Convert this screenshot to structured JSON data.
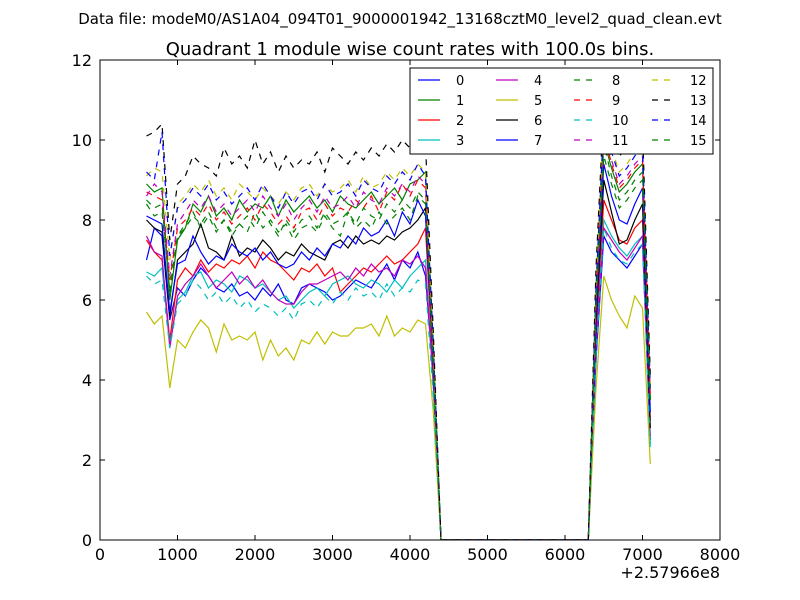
{
  "chart_data": {
    "type": "line",
    "suptitle": "Data file: modeM0/AS1A04_094T01_9000001942_13168cztM0_level2_quad_clean.evt",
    "title": "Quadrant 1 module wise count rates with 100.0s bins.",
    "xlabel": "",
    "ylabel": "",
    "x_offset_label": "+2.57966e8",
    "xlim": [
      0,
      8000
    ],
    "ylim": [
      0,
      12
    ],
    "xticks": [
      0,
      1000,
      2000,
      3000,
      4000,
      5000,
      6000,
      7000,
      8000
    ],
    "yticks": [
      0,
      2,
      4,
      6,
      8,
      10,
      12
    ],
    "grid": false,
    "legend_position": "top-right",
    "x": [
      600,
      700,
      800,
      900,
      1000,
      1100,
      1200,
      1300,
      1400,
      1500,
      1600,
      1700,
      1800,
      1900,
      2000,
      2100,
      2200,
      2300,
      2400,
      2500,
      2600,
      2700,
      2800,
      2900,
      3000,
      3100,
      3200,
      3300,
      3400,
      3500,
      3600,
      3700,
      3800,
      3900,
      4000,
      4100,
      4200,
      4300,
      4400,
      4500,
      4600,
      4700,
      4800,
      4900,
      5000,
      5100,
      5200,
      5300,
      5400,
      5500,
      5600,
      5700,
      5800,
      5900,
      6000,
      6100,
      6200,
      6300,
      6400,
      6500,
      6600,
      6700,
      6800,
      6900,
      7000,
      7100
    ],
    "series": [
      {
        "name": "0",
        "color": "#0000ff",
        "dash": false,
        "values": [
          7.0,
          7.8,
          7.6,
          5.5,
          6.3,
          6.1,
          6.5,
          6.8,
          6.6,
          6.3,
          6.2,
          6.4,
          6.1,
          6.2,
          6.0,
          6.3,
          6.1,
          6.4,
          6.0,
          5.9,
          6.3,
          6.4,
          6.3,
          6.2,
          6.0,
          6.1,
          6.3,
          6.5,
          6.4,
          6.3,
          6.6,
          6.9,
          6.5,
          7.0,
          6.8,
          7.2,
          6.6,
          4.0,
          0,
          0,
          0,
          0,
          0,
          0,
          0,
          0,
          0,
          0,
          0,
          0,
          0,
          0,
          0,
          0,
          0,
          0,
          0,
          0,
          4.5,
          7.6,
          7.2,
          7.0,
          6.8,
          7.1,
          7.4,
          2.5
        ]
      },
      {
        "name": "1",
        "color": "#008000",
        "dash": false,
        "values": [
          8.9,
          8.7,
          8.8,
          6.0,
          7.5,
          7.8,
          8.4,
          8.2,
          8.6,
          8.1,
          8.3,
          8.0,
          8.5,
          8.2,
          8.4,
          8.3,
          8.6,
          8.1,
          8.5,
          8.2,
          8.4,
          8.6,
          8.3,
          8.5,
          8.2,
          8.6,
          8.4,
          8.3,
          8.5,
          8.7,
          8.4,
          8.6,
          8.8,
          8.5,
          8.9,
          9.0,
          9.2,
          4.5,
          0,
          0,
          0,
          0,
          0,
          0,
          0,
          0,
          0,
          0,
          0,
          0,
          0,
          0,
          0,
          0,
          0,
          0,
          0,
          0,
          6.0,
          10.0,
          9.3,
          8.7,
          8.9,
          9.2,
          9.4,
          3.5
        ]
      },
      {
        "name": "2",
        "color": "#ff0000",
        "dash": false,
        "values": [
          7.5,
          7.2,
          7.0,
          5.0,
          6.5,
          6.8,
          6.6,
          7.0,
          6.7,
          6.9,
          6.8,
          7.0,
          6.9,
          7.1,
          6.8,
          7.2,
          7.0,
          6.9,
          6.7,
          6.5,
          6.8,
          6.7,
          6.9,
          6.6,
          6.8,
          6.2,
          6.4,
          6.6,
          6.8,
          6.7,
          6.9,
          7.1,
          6.9,
          7.0,
          7.2,
          7.4,
          7.8,
          4.2,
          0,
          0,
          0,
          0,
          0,
          0,
          0,
          0,
          0,
          0,
          0,
          0,
          0,
          0,
          0,
          0,
          0,
          0,
          0,
          0,
          5.2,
          8.5,
          8.0,
          7.5,
          7.4,
          7.8,
          8.0,
          3.0
        ]
      },
      {
        "name": "3",
        "color": "#00bfbf",
        "dash": false,
        "values": [
          6.7,
          6.6,
          6.8,
          4.9,
          6.0,
          6.2,
          6.6,
          6.7,
          6.3,
          6.5,
          6.4,
          6.2,
          6.6,
          6.5,
          6.3,
          6.4,
          6.2,
          6.0,
          6.1,
          5.8,
          6.0,
          6.2,
          6.3,
          6.1,
          6.4,
          6.5,
          6.6,
          6.4,
          6.3,
          6.5,
          6.4,
          6.2,
          6.5,
          6.3,
          6.6,
          6.8,
          7.0,
          3.8,
          0,
          0,
          0,
          0,
          0,
          0,
          0,
          0,
          0,
          0,
          0,
          0,
          0,
          0,
          0,
          0,
          0,
          0,
          0,
          0,
          4.8,
          8.0,
          7.6,
          7.3,
          7.1,
          7.4,
          7.6,
          2.4
        ]
      },
      {
        "name": "4",
        "color": "#bf00bf",
        "dash": false,
        "values": [
          7.6,
          7.2,
          7.1,
          4.8,
          6.1,
          6.4,
          6.6,
          6.9,
          6.6,
          6.3,
          6.5,
          6.7,
          6.4,
          6.6,
          6.3,
          6.5,
          6.2,
          6.0,
          5.9,
          5.9,
          6.2,
          6.4,
          6.4,
          6.5,
          6.6,
          6.7,
          6.5,
          6.8,
          6.6,
          6.9,
          6.7,
          6.8,
          6.6,
          7.0,
          6.9,
          7.1,
          6.8,
          4.0,
          0,
          0,
          0,
          0,
          0,
          0,
          0,
          0,
          0,
          0,
          0,
          0,
          0,
          0,
          0,
          0,
          0,
          0,
          0,
          0,
          4.9,
          7.8,
          7.5,
          7.2,
          7.0,
          7.3,
          7.6,
          2.6
        ]
      },
      {
        "name": "5",
        "color": "#bfbf00",
        "dash": false,
        "values": [
          5.7,
          5.4,
          5.6,
          3.8,
          5.0,
          4.8,
          5.2,
          5.5,
          5.3,
          4.7,
          5.4,
          5.0,
          5.1,
          5.0,
          5.2,
          4.5,
          5.0,
          4.6,
          4.8,
          4.5,
          5.0,
          4.9,
          5.2,
          4.9,
          5.2,
          5.1,
          5.1,
          5.3,
          5.3,
          5.4,
          5.1,
          5.6,
          5.1,
          5.3,
          5.2,
          5.5,
          5.4,
          3.2,
          0,
          0,
          0,
          0,
          0,
          0,
          0,
          0,
          0,
          0,
          0,
          0,
          0,
          0,
          0,
          0,
          0,
          0,
          0,
          0,
          3.8,
          6.6,
          6.0,
          5.6,
          5.3,
          6.1,
          5.8,
          1.9
        ]
      },
      {
        "name": "6",
        "color": "#000000",
        "dash": false,
        "values": [
          8.0,
          7.8,
          7.7,
          5.6,
          7.0,
          7.2,
          7.4,
          7.9,
          7.3,
          7.2,
          7.0,
          7.6,
          7.1,
          7.3,
          7.2,
          7.5,
          7.3,
          7.0,
          7.2,
          7.1,
          7.4,
          7.2,
          7.1,
          7.0,
          7.4,
          7.5,
          7.3,
          7.6,
          7.4,
          7.5,
          7.4,
          7.6,
          7.5,
          7.7,
          7.8,
          8.0,
          8.3,
          4.4,
          0,
          0,
          0,
          0,
          0,
          0,
          0,
          0,
          0,
          0,
          0,
          0,
          0,
          0,
          0,
          0,
          0,
          0,
          0,
          0,
          5.4,
          9.0,
          8.2,
          7.4,
          7.5,
          8.0,
          8.4,
          2.8
        ]
      },
      {
        "name": "7",
        "color": "#0000ff",
        "dash": false,
        "values": [
          8.1,
          8.0,
          7.9,
          5.7,
          6.9,
          7.0,
          7.6,
          7.2,
          6.9,
          7.1,
          7.0,
          7.4,
          7.2,
          7.1,
          7.3,
          7.0,
          7.2,
          6.9,
          6.8,
          6.9,
          7.2,
          7.0,
          7.3,
          7.1,
          7.4,
          7.3,
          7.6,
          7.4,
          7.8,
          7.6,
          7.7,
          8.0,
          7.6,
          8.2,
          7.9,
          8.5,
          8.1,
          4.4,
          0,
          0,
          0,
          0,
          0,
          0,
          0,
          0,
          0,
          0,
          0,
          0,
          0,
          0,
          0,
          0,
          0,
          0,
          0,
          0,
          5.6,
          9.4,
          8.6,
          8.0,
          7.9,
          8.4,
          8.8,
          3.2
        ]
      },
      {
        "name": "8",
        "color": "#008000",
        "dash": true,
        "values": [
          8.4,
          8.1,
          8.2,
          6.3,
          7.6,
          7.9,
          8.2,
          7.8,
          8.1,
          7.7,
          8.0,
          7.6,
          7.9,
          7.7,
          8.2,
          7.8,
          8.0,
          7.7,
          7.9,
          7.5,
          7.8,
          7.9,
          7.7,
          8.1,
          7.8,
          7.6,
          8.2,
          7.8,
          8.0,
          7.8,
          8.2,
          7.9,
          8.1,
          8.3,
          8.0,
          8.6,
          8.4,
          4.3,
          0,
          0,
          0,
          0,
          0,
          0,
          0,
          0,
          0,
          0,
          0,
          0,
          0,
          0,
          0,
          0,
          0,
          0,
          0,
          0,
          5.8,
          9.6,
          8.9,
          8.3,
          8.5,
          8.8,
          9.0,
          3.4
        ]
      },
      {
        "name": "9",
        "color": "#ff0000",
        "dash": true,
        "values": [
          8.7,
          8.6,
          8.5,
          6.5,
          7.8,
          8.0,
          8.3,
          8.1,
          8.4,
          8.0,
          8.2,
          7.9,
          8.1,
          8.3,
          8.0,
          8.4,
          8.2,
          7.9,
          8.1,
          7.8,
          8.2,
          8.3,
          8.0,
          8.4,
          8.1,
          8.3,
          8.2,
          8.5,
          8.3,
          8.6,
          8.2,
          8.7,
          8.5,
          8.9,
          8.6,
          9.0,
          8.8,
          4.6,
          0,
          0,
          0,
          0,
          0,
          0,
          0,
          0,
          0,
          0,
          0,
          0,
          0,
          0,
          0,
          0,
          0,
          0,
          0,
          0,
          6.0,
          10.2,
          9.4,
          8.8,
          9.0,
          9.3,
          9.5,
          3.6
        ]
      },
      {
        "name": "10",
        "color": "#00bfbf",
        "dash": true,
        "values": [
          6.6,
          6.4,
          6.5,
          4.8,
          5.9,
          6.1,
          6.5,
          6.3,
          6.0,
          6.2,
          5.9,
          6.1,
          5.8,
          6.0,
          5.7,
          5.9,
          5.8,
          5.6,
          5.8,
          5.5,
          5.9,
          6.0,
          5.8,
          6.1,
          5.9,
          6.2,
          6.0,
          6.3,
          6.1,
          6.2,
          6.0,
          6.4,
          6.1,
          6.3,
          6.2,
          6.5,
          6.4,
          3.6,
          0,
          0,
          0,
          0,
          0,
          0,
          0,
          0,
          0,
          0,
          0,
          0,
          0,
          0,
          0,
          0,
          0,
          0,
          0,
          0,
          4.6,
          7.8,
          7.3,
          7.0,
          6.9,
          7.2,
          7.4,
          2.3
        ]
      },
      {
        "name": "11",
        "color": "#bf00bf",
        "dash": true,
        "values": [
          8.6,
          8.9,
          8.7,
          6.6,
          7.9,
          8.2,
          8.5,
          8.3,
          8.6,
          8.2,
          8.4,
          8.1,
          8.3,
          8.5,
          8.2,
          8.6,
          8.3,
          8.1,
          8.4,
          8.0,
          8.3,
          8.5,
          8.2,
          8.6,
          8.3,
          8.4,
          8.6,
          8.3,
          8.7,
          8.5,
          8.4,
          8.8,
          8.6,
          8.9,
          8.7,
          9.1,
          8.9,
          4.7,
          0,
          0,
          0,
          0,
          0,
          0,
          0,
          0,
          0,
          0,
          0,
          0,
          0,
          0,
          0,
          0,
          0,
          0,
          0,
          0,
          6.1,
          10.3,
          9.5,
          8.9,
          9.1,
          9.4,
          9.6,
          3.7
        ]
      },
      {
        "name": "12",
        "color": "#bfbf00",
        "dash": true,
        "values": [
          9.1,
          9.3,
          9.2,
          7.0,
          8.4,
          8.6,
          8.9,
          8.7,
          9.0,
          8.6,
          8.8,
          8.5,
          8.9,
          8.7,
          8.5,
          8.8,
          8.6,
          8.4,
          8.7,
          8.5,
          8.8,
          8.9,
          8.6,
          8.9,
          8.7,
          8.8,
          9.0,
          8.7,
          9.1,
          8.8,
          8.9,
          9.2,
          9.0,
          9.3,
          9.1,
          9.4,
          9.2,
          4.9,
          0,
          0,
          0,
          0,
          0,
          0,
          0,
          0,
          0,
          0,
          0,
          0,
          0,
          0,
          0,
          0,
          0,
          0,
          0,
          0,
          6.4,
          10.6,
          9.8,
          9.2,
          9.4,
          9.7,
          9.9,
          3.9
        ]
      },
      {
        "name": "13",
        "color": "#000000",
        "dash": true,
        "values": [
          10.1,
          10.2,
          10.4,
          7.5,
          8.9,
          9.1,
          9.6,
          9.4,
          9.3,
          9.1,
          9.8,
          9.4,
          9.6,
          9.3,
          10.0,
          9.4,
          9.7,
          9.2,
          9.6,
          9.3,
          9.5,
          9.4,
          9.7,
          9.2,
          9.8,
          9.6,
          9.4,
          9.7,
          9.5,
          9.8,
          9.6,
          9.9,
          9.7,
          10.0,
          9.8,
          10.1,
          9.9,
          5.2,
          0,
          0,
          0,
          0,
          0,
          0,
          0,
          0,
          0,
          0,
          0,
          0,
          0,
          0,
          0,
          0,
          0,
          0,
          0,
          0,
          6.8,
          10.9,
          10.2,
          9.6,
          9.8,
          10.1,
          10.3,
          4.1
        ]
      },
      {
        "name": "14",
        "color": "#0000ff",
        "dash": true,
        "values": [
          9.2,
          9.0,
          10.2,
          7.1,
          8.3,
          8.5,
          8.8,
          8.6,
          8.9,
          8.5,
          8.7,
          8.4,
          8.6,
          8.8,
          8.5,
          8.9,
          8.6,
          8.3,
          8.7,
          8.4,
          8.7,
          8.8,
          8.5,
          8.9,
          8.6,
          8.7,
          8.9,
          8.6,
          9.0,
          8.8,
          8.7,
          9.1,
          8.9,
          9.2,
          9.0,
          9.4,
          9.1,
          4.9,
          0,
          0,
          0,
          0,
          0,
          0,
          0,
          0,
          0,
          0,
          0,
          0,
          0,
          0,
          0,
          0,
          0,
          0,
          0,
          0,
          6.3,
          10.5,
          9.7,
          9.1,
          9.3,
          9.6,
          9.8,
          3.8
        ]
      },
      {
        "name": "15",
        "color": "#008000",
        "dash": true,
        "values": [
          8.5,
          8.3,
          8.4,
          6.2,
          7.6,
          7.8,
          8.1,
          7.9,
          8.2,
          7.8,
          8.0,
          7.7,
          7.9,
          8.1,
          7.8,
          8.2,
          7.9,
          7.6,
          8.0,
          7.7,
          8.0,
          8.1,
          7.8,
          8.2,
          7.9,
          8.0,
          8.2,
          7.9,
          8.3,
          8.1,
          8.0,
          8.4,
          8.2,
          8.5,
          8.3,
          8.7,
          8.5,
          4.5,
          0,
          0,
          0,
          0,
          0,
          0,
          0,
          0,
          0,
          0,
          0,
          0,
          0,
          0,
          0,
          0,
          0,
          0,
          0,
          0,
          5.9,
          9.9,
          9.1,
          8.5,
          8.7,
          9.0,
          9.2,
          3.5
        ]
      }
    ]
  }
}
